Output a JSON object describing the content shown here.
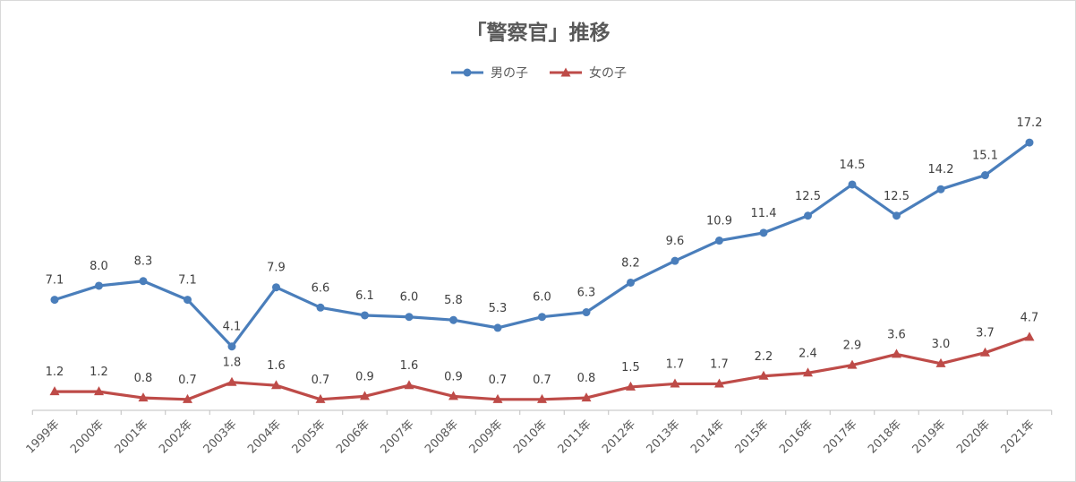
{
  "chart_data": {
    "type": "line",
    "title": "「警察官」推移",
    "categories": [
      "1999年",
      "2000年",
      "2001年",
      "2002年",
      "2003年",
      "2004年",
      "2005年",
      "2006年",
      "2007年",
      "2008年",
      "2009年",
      "2010年",
      "2011年",
      "2012年",
      "2013年",
      "2014年",
      "2015年",
      "2016年",
      "2017年",
      "2018年",
      "2019年",
      "2020年",
      "2021年"
    ],
    "series": [
      {
        "name": "男の子",
        "color": "#4a7ebb",
        "marker": "circle",
        "values": [
          7.1,
          8.0,
          8.3,
          7.1,
          4.1,
          7.9,
          6.6,
          6.1,
          6.0,
          5.8,
          5.3,
          6.0,
          6.3,
          8.2,
          9.6,
          10.9,
          11.4,
          12.5,
          14.5,
          12.5,
          14.2,
          15.1,
          17.2
        ]
      },
      {
        "name": "女の子",
        "color": "#be4b48",
        "marker": "triangle",
        "values": [
          1.2,
          1.2,
          0.8,
          0.7,
          1.8,
          1.6,
          0.7,
          0.9,
          1.6,
          0.9,
          0.7,
          0.7,
          0.8,
          1.5,
          1.7,
          1.7,
          2.2,
          2.4,
          2.9,
          3.6,
          3.0,
          3.7,
          4.7
        ]
      }
    ],
    "ylim": [
      0,
      18
    ],
    "grid": false,
    "legend_position": "top-center"
  }
}
